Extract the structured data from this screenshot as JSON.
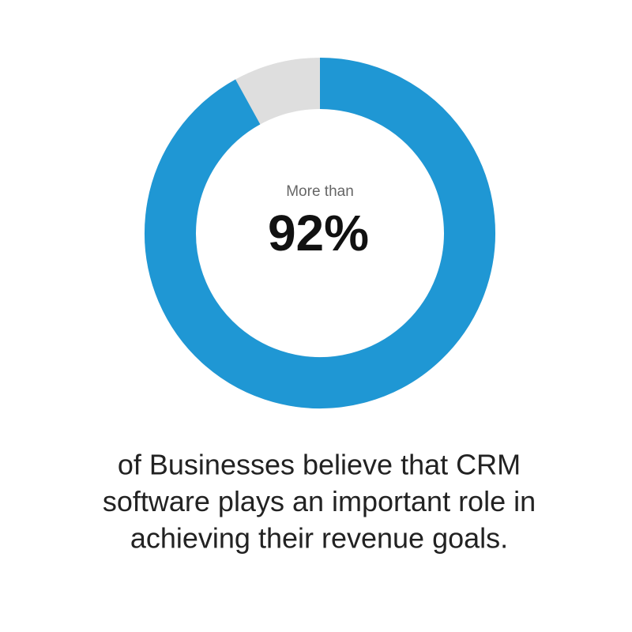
{
  "chart_data": {
    "type": "donut",
    "values": [
      92
    ],
    "value_labels": [
      "92%"
    ],
    "color": "#1f97d4",
    "track_color": "#dedede",
    "annotation": "More than",
    "caption": [
      "of Businesses believe that CRM",
      "software plays an important role in",
      "achieving their revenue goals."
    ]
  }
}
